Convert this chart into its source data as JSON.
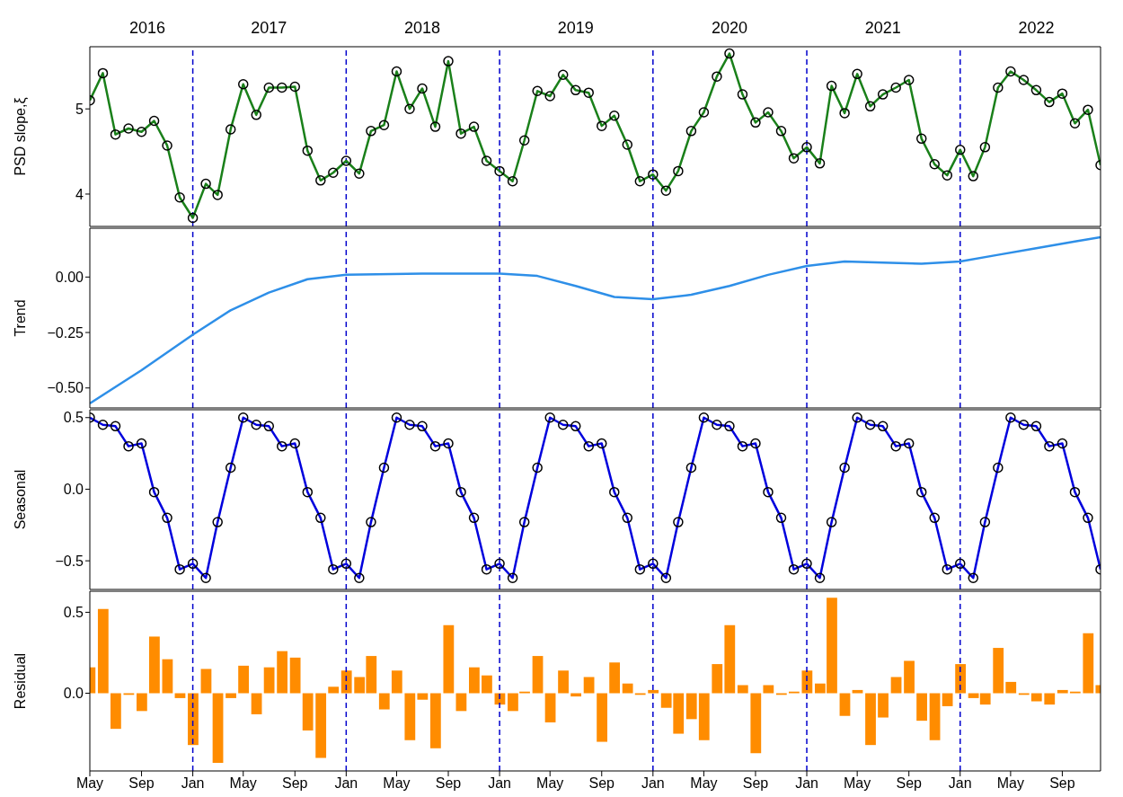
{
  "chart_data": [
    {
      "type": "line",
      "ylabel": "PSD slope,ξ",
      "color": "#1a801a",
      "marker": "circle",
      "tick_labels": "y",
      "x": [
        "2016-05",
        "2016-06",
        "2016-07",
        "2016-08",
        "2016-09",
        "2016-10",
        "2016-11",
        "2016-12",
        "2017-01",
        "2017-02",
        "2017-03",
        "2017-04",
        "2017-05",
        "2017-06",
        "2017-07",
        "2017-08",
        "2017-09",
        "2017-10",
        "2017-11",
        "2017-12",
        "2018-01",
        "2018-02",
        "2018-03",
        "2018-04",
        "2018-05",
        "2018-06",
        "2018-07",
        "2018-08",
        "2018-09",
        "2018-10",
        "2018-11",
        "2018-12",
        "2019-01",
        "2019-02",
        "2019-03",
        "2019-04",
        "2019-05",
        "2019-06",
        "2019-07",
        "2019-08",
        "2019-09",
        "2019-10",
        "2019-11",
        "2019-12",
        "2020-01",
        "2020-02",
        "2020-03",
        "2020-04",
        "2020-05",
        "2020-06",
        "2020-07",
        "2020-08",
        "2020-09",
        "2020-10",
        "2020-11",
        "2020-12",
        "2021-01",
        "2021-02",
        "2021-03",
        "2021-04",
        "2021-05",
        "2021-06",
        "2021-07",
        "2021-08",
        "2021-09",
        "2021-10",
        "2021-11",
        "2021-12",
        "2022-01",
        "2022-02",
        "2022-03",
        "2022-04",
        "2022-05",
        "2022-06",
        "2022-07",
        "2022-08",
        "2022-09",
        "2022-10",
        "2022-11",
        "2022-12"
      ],
      "values": [
        5.1,
        5.42,
        4.7,
        4.77,
        4.73,
        4.86,
        4.57,
        3.96,
        3.72,
        4.12,
        3.99,
        4.76,
        5.29,
        4.93,
        5.25,
        5.25,
        5.26,
        4.51,
        4.16,
        4.25,
        4.39,
        4.24,
        4.74,
        4.81,
        5.44,
        5.0,
        5.24,
        4.79,
        5.56,
        4.71,
        4.79,
        4.39,
        4.27,
        4.15,
        4.63,
        5.21,
        5.15,
        5.4,
        5.22,
        5.19,
        4.8,
        4.92,
        4.58,
        4.15,
        4.23,
        4.04,
        4.27,
        4.74,
        4.96,
        5.38,
        5.65,
        5.17,
        4.84,
        4.96,
        4.74,
        4.42,
        4.55,
        4.36,
        5.27,
        4.95,
        5.41,
        5.03,
        5.17,
        5.25,
        5.34,
        4.65,
        4.35,
        4.22,
        4.52,
        4.21,
        4.55,
        5.25,
        5.44,
        5.34,
        5.22,
        5.08,
        5.18,
        4.83,
        4.99,
        4.34
      ],
      "xlim": [
        "2016-05",
        "2022-12"
      ],
      "ylim": [
        3.62,
        5.73
      ],
      "yticks": [
        4,
        5
      ],
      "x2lim": [
        "2016-05",
        "2022-12"
      ],
      "x2ticks": [
        {
          "value": "2016-09-15",
          "label": "2016"
        },
        {
          "value": "2017-07",
          "label": "2017"
        },
        {
          "value": "2018-07",
          "label": "2018"
        },
        {
          "value": "2019-07",
          "label": "2019"
        },
        {
          "value": "2020-07",
          "label": "2020"
        },
        {
          "value": "2021-07",
          "label": "2021"
        },
        {
          "value": "2022-07",
          "label": "2022"
        }
      ],
      "ref_lines": [
        {
          "axis": "x",
          "value": "2017-01",
          "color": "#0000cc",
          "line_style": "dashed"
        },
        {
          "axis": "x",
          "value": "2018-01",
          "color": "#0000cc",
          "line_style": "dashed"
        },
        {
          "axis": "x",
          "value": "2019-01",
          "color": "#0000cc",
          "line_style": "dashed"
        },
        {
          "axis": "x",
          "value": "2020-01",
          "color": "#0000cc",
          "line_style": "dashed"
        },
        {
          "axis": "x",
          "value": "2021-01",
          "color": "#0000cc",
          "line_style": "dashed"
        },
        {
          "axis": "x",
          "value": "2022-01",
          "color": "#0000cc",
          "line_style": "dashed"
        }
      ]
    },
    {
      "type": "line",
      "ylabel": "Trend",
      "color": "#2e8fe8",
      "tick_labels": "y",
      "x": [
        "2016-05",
        "2016-09",
        "2017-01",
        "2017-04",
        "2017-07",
        "2017-10",
        "2018-01",
        "2018-07",
        "2019-01",
        "2019-04",
        "2019-07",
        "2019-10",
        "2020-01",
        "2020-04",
        "2020-07",
        "2020-10",
        "2021-01",
        "2021-04",
        "2021-07",
        "2021-10",
        "2022-01",
        "2022-04",
        "2022-07",
        "2022-10",
        "2022-12"
      ],
      "values": [
        -0.57,
        -0.42,
        -0.26,
        -0.15,
        -0.07,
        -0.01,
        0.01,
        0.015,
        0.015,
        0.005,
        -0.04,
        -0.09,
        -0.1,
        -0.08,
        -0.04,
        0.01,
        0.05,
        0.07,
        0.065,
        0.06,
        0.07,
        0.1,
        0.13,
        0.16,
        0.18
      ],
      "xlim": [
        "2016-05",
        "2022-12"
      ],
      "ylim": [
        -0.59,
        0.22
      ],
      "yticks": [
        {
          "value": 0,
          "label": "0.00"
        },
        {
          "value": -0.25,
          "label": "−0.25"
        },
        {
          "value": -0.5,
          "label": "−0.50"
        }
      ],
      "ref_lines": [
        {
          "axis": "x",
          "value": "2017-01",
          "color": "#0000cc",
          "line_style": "dashed"
        },
        {
          "axis": "x",
          "value": "2018-01",
          "color": "#0000cc",
          "line_style": "dashed"
        },
        {
          "axis": "x",
          "value": "2019-01",
          "color": "#0000cc",
          "line_style": "dashed"
        },
        {
          "axis": "x",
          "value": "2020-01",
          "color": "#0000cc",
          "line_style": "dashed"
        },
        {
          "axis": "x",
          "value": "2021-01",
          "color": "#0000cc",
          "line_style": "dashed"
        },
        {
          "axis": "x",
          "value": "2022-01",
          "color": "#0000cc",
          "line_style": "dashed"
        }
      ]
    },
    {
      "type": "line",
      "ylabel": "Seasonal",
      "color": "#0000dd",
      "marker": "circle",
      "tick_labels": "y",
      "x": [
        "2016-05",
        "2016-06",
        "2016-07",
        "2016-08",
        "2016-09",
        "2016-10",
        "2016-11",
        "2016-12",
        "2017-01",
        "2017-02",
        "2017-03",
        "2017-04",
        "2017-05",
        "2017-06",
        "2017-07",
        "2017-08",
        "2017-09",
        "2017-10",
        "2017-11",
        "2017-12",
        "2018-01",
        "2018-02",
        "2018-03",
        "2018-04",
        "2018-05",
        "2018-06",
        "2018-07",
        "2018-08",
        "2018-09",
        "2018-10",
        "2018-11",
        "2018-12",
        "2019-01",
        "2019-02",
        "2019-03",
        "2019-04",
        "2019-05",
        "2019-06",
        "2019-07",
        "2019-08",
        "2019-09",
        "2019-10",
        "2019-11",
        "2019-12",
        "2020-01",
        "2020-02",
        "2020-03",
        "2020-04",
        "2020-05",
        "2020-06",
        "2020-07",
        "2020-08",
        "2020-09",
        "2020-10",
        "2020-11",
        "2020-12",
        "2021-01",
        "2021-02",
        "2021-03",
        "2021-04",
        "2021-05",
        "2021-06",
        "2021-07",
        "2021-08",
        "2021-09",
        "2021-10",
        "2021-11",
        "2021-12",
        "2022-01",
        "2022-02",
        "2022-03",
        "2022-04",
        "2022-05",
        "2022-06",
        "2022-07",
        "2022-08",
        "2022-09",
        "2022-10",
        "2022-11",
        "2022-12"
      ],
      "values": [
        0.5,
        0.45,
        0.44,
        0.3,
        0.32,
        -0.02,
        -0.2,
        -0.56,
        -0.52,
        -0.62,
        -0.23,
        0.15,
        0.5,
        0.45,
        0.44,
        0.3,
        0.32,
        -0.02,
        -0.2,
        -0.56,
        -0.52,
        -0.62,
        -0.23,
        0.15,
        0.5,
        0.45,
        0.44,
        0.3,
        0.32,
        -0.02,
        -0.2,
        -0.56,
        -0.52,
        -0.62,
        -0.23,
        0.15,
        0.5,
        0.45,
        0.44,
        0.3,
        0.32,
        -0.02,
        -0.2,
        -0.56,
        -0.52,
        -0.62,
        -0.23,
        0.15,
        0.5,
        0.45,
        0.44,
        0.3,
        0.32,
        -0.02,
        -0.2,
        -0.56,
        -0.52,
        -0.62,
        -0.23,
        0.15,
        0.5,
        0.45,
        0.44,
        0.3,
        0.32,
        -0.02,
        -0.2,
        -0.56,
        -0.52,
        -0.62,
        -0.23,
        0.15,
        0.5,
        0.45,
        0.44,
        0.3,
        0.32,
        -0.02,
        -0.2,
        -0.56
      ],
      "xlim": [
        "2016-05",
        "2022-12"
      ],
      "ylim": [
        -0.7,
        0.555
      ],
      "yticks": [
        {
          "value": 0.5,
          "label": "0.5"
        },
        {
          "value": 0,
          "label": "0.0"
        },
        {
          "value": -0.5,
          "label": "−0.5"
        }
      ],
      "ref_lines": [
        {
          "axis": "x",
          "value": "2017-01",
          "color": "#0000cc",
          "line_style": "dashed"
        },
        {
          "axis": "x",
          "value": "2018-01",
          "color": "#0000cc",
          "line_style": "dashed"
        },
        {
          "axis": "x",
          "value": "2019-01",
          "color": "#0000cc",
          "line_style": "dashed"
        },
        {
          "axis": "x",
          "value": "2020-01",
          "color": "#0000cc",
          "line_style": "dashed"
        },
        {
          "axis": "x",
          "value": "2021-01",
          "color": "#0000cc",
          "line_style": "dashed"
        },
        {
          "axis": "x",
          "value": "2022-01",
          "color": "#0000cc",
          "line_style": "dashed"
        }
      ]
    },
    {
      "type": "bar",
      "ylabel": "Residual",
      "color": "#ff8c00",
      "x": [
        "2016-05",
        "2016-06",
        "2016-07",
        "2016-08",
        "2016-09",
        "2016-10",
        "2016-11",
        "2016-12",
        "2017-01",
        "2017-02",
        "2017-03",
        "2017-04",
        "2017-05",
        "2017-06",
        "2017-07",
        "2017-08",
        "2017-09",
        "2017-10",
        "2017-11",
        "2017-12",
        "2018-01",
        "2018-02",
        "2018-03",
        "2018-04",
        "2018-05",
        "2018-06",
        "2018-07",
        "2018-08",
        "2018-09",
        "2018-10",
        "2018-11",
        "2018-12",
        "2019-01",
        "2019-02",
        "2019-03",
        "2019-04",
        "2019-05",
        "2019-06",
        "2019-07",
        "2019-08",
        "2019-09",
        "2019-10",
        "2019-11",
        "2019-12",
        "2020-01",
        "2020-02",
        "2020-03",
        "2020-04",
        "2020-05",
        "2020-06",
        "2020-07",
        "2020-08",
        "2020-09",
        "2020-10",
        "2020-11",
        "2020-12",
        "2021-01",
        "2021-02",
        "2021-03",
        "2021-04",
        "2021-05",
        "2021-06",
        "2021-07",
        "2021-08",
        "2021-09",
        "2021-10",
        "2021-11",
        "2021-12",
        "2022-01",
        "2022-02",
        "2022-03",
        "2022-04",
        "2022-05",
        "2022-06",
        "2022-07",
        "2022-08",
        "2022-09",
        "2022-10",
        "2022-11",
        "2022-12"
      ],
      "values": [
        0.16,
        0.52,
        -0.22,
        -0.01,
        -0.11,
        0.35,
        0.21,
        -0.03,
        -0.32,
        0.15,
        -0.43,
        -0.03,
        0.17,
        -0.13,
        0.16,
        0.26,
        0.22,
        -0.23,
        -0.4,
        0.04,
        0.14,
        0.1,
        0.23,
        -0.1,
        0.14,
        -0.29,
        -0.04,
        -0.34,
        0.42,
        -0.11,
        0.16,
        0.11,
        -0.07,
        -0.11,
        0.01,
        0.23,
        -0.18,
        0.14,
        -0.02,
        0.1,
        -0.3,
        0.19,
        0.06,
        -0.01,
        0.02,
        -0.09,
        -0.25,
        -0.16,
        -0.29,
        0.18,
        0.42,
        0.05,
        -0.37,
        0.05,
        -0.01,
        0.01,
        0.14,
        0.06,
        0.59,
        -0.14,
        0.02,
        -0.32,
        -0.15,
        0.1,
        0.2,
        -0.17,
        -0.29,
        -0.08,
        0.18,
        -0.03,
        -0.07,
        0.28,
        0.07,
        -0.01,
        -0.05,
        -0.07,
        0.02,
        0.01,
        0.37,
        0.05
      ],
      "xlim": [
        "2016-05",
        "2022-12"
      ],
      "ylim": [
        -0.48,
        0.63
      ],
      "yticks": [
        {
          "value": 0,
          "label": "0.0"
        },
        {
          "value": 0.5,
          "label": "0.5"
        }
      ],
      "xticks": [
        {
          "value": "2016-05",
          "label": "May"
        },
        {
          "value": "2016-09",
          "label": "Sep"
        },
        {
          "value": "2017-01",
          "label": "Jan"
        },
        {
          "value": "2017-05",
          "label": "May"
        },
        {
          "value": "2017-09",
          "label": "Sep"
        },
        {
          "value": "2018-01",
          "label": "Jan"
        },
        {
          "value": "2018-05",
          "label": "May"
        },
        {
          "value": "2018-09",
          "label": "Sep"
        },
        {
          "value": "2019-01",
          "label": "Jan"
        },
        {
          "value": "2019-05",
          "label": "May"
        },
        {
          "value": "2019-09",
          "label": "Sep"
        },
        {
          "value": "2020-01",
          "label": "Jan"
        },
        {
          "value": "2020-05",
          "label": "May"
        },
        {
          "value": "2020-09",
          "label": "Sep"
        },
        {
          "value": "2021-01",
          "label": "Jan"
        },
        {
          "value": "2021-05",
          "label": "May"
        },
        {
          "value": "2021-09",
          "label": "Sep"
        },
        {
          "value": "2022-01",
          "label": "Jan"
        },
        {
          "value": "2022-05",
          "label": "May"
        },
        {
          "value": "2022-09",
          "label": "Sep"
        }
      ],
      "ref_lines": [
        {
          "axis": "x",
          "value": "2017-01",
          "color": "#0000cc",
          "line_style": "dashed"
        },
        {
          "axis": "x",
          "value": "2018-01",
          "color": "#0000cc",
          "line_style": "dashed"
        },
        {
          "axis": "x",
          "value": "2019-01",
          "color": "#0000cc",
          "line_style": "dashed"
        },
        {
          "axis": "x",
          "value": "2020-01",
          "color": "#0000cc",
          "line_style": "dashed"
        },
        {
          "axis": "x",
          "value": "2021-01",
          "color": "#0000cc",
          "line_style": "dashed"
        },
        {
          "axis": "x",
          "value": "2022-01",
          "color": "#0000cc",
          "line_style": "dashed"
        }
      ]
    }
  ]
}
